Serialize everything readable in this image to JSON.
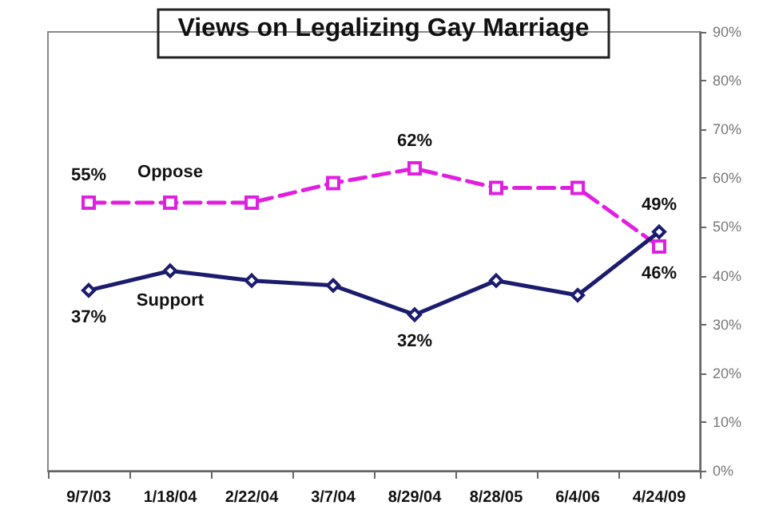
{
  "chart_data": {
    "type": "line",
    "title": "Views on Legalizing Gay Marriage",
    "categories": [
      "9/7/03",
      "1/18/04",
      "2/22/04",
      "3/7/04",
      "8/29/04",
      "8/28/05",
      "6/4/06",
      "4/24/09"
    ],
    "series": [
      {
        "name": "Oppose",
        "color": "#e020e0",
        "marker": "square",
        "line_style": "dashed",
        "values": [
          55,
          55,
          55,
          59,
          62,
          58,
          58,
          46
        ],
        "value_labels": [
          "55%",
          null,
          null,
          null,
          "62%",
          null,
          null,
          "46%"
        ]
      },
      {
        "name": "Support",
        "color": "#1c1c6e",
        "marker": "diamond",
        "line_style": "solid",
        "values": [
          37,
          41,
          39,
          38,
          32,
          39,
          36,
          49
        ],
        "value_labels": [
          "37%",
          null,
          null,
          null,
          "32%",
          null,
          null,
          "49%"
        ]
      }
    ],
    "ylim": [
      0,
      90
    ],
    "yticks": [
      {
        "value": 0,
        "label": "0%"
      },
      {
        "value": 10,
        "label": "10%"
      },
      {
        "value": 20,
        "label": "20%"
      },
      {
        "value": 30,
        "label": "30%"
      },
      {
        "value": 40,
        "label": "40%"
      },
      {
        "value": 50,
        "label": "50%"
      },
      {
        "value": 60,
        "label": "60%"
      },
      {
        "value": 70,
        "label": "70%"
      },
      {
        "value": 80,
        "label": "80%"
      },
      {
        "value": 90,
        "label": "90%"
      }
    ],
    "grid": false,
    "legend": false
  }
}
